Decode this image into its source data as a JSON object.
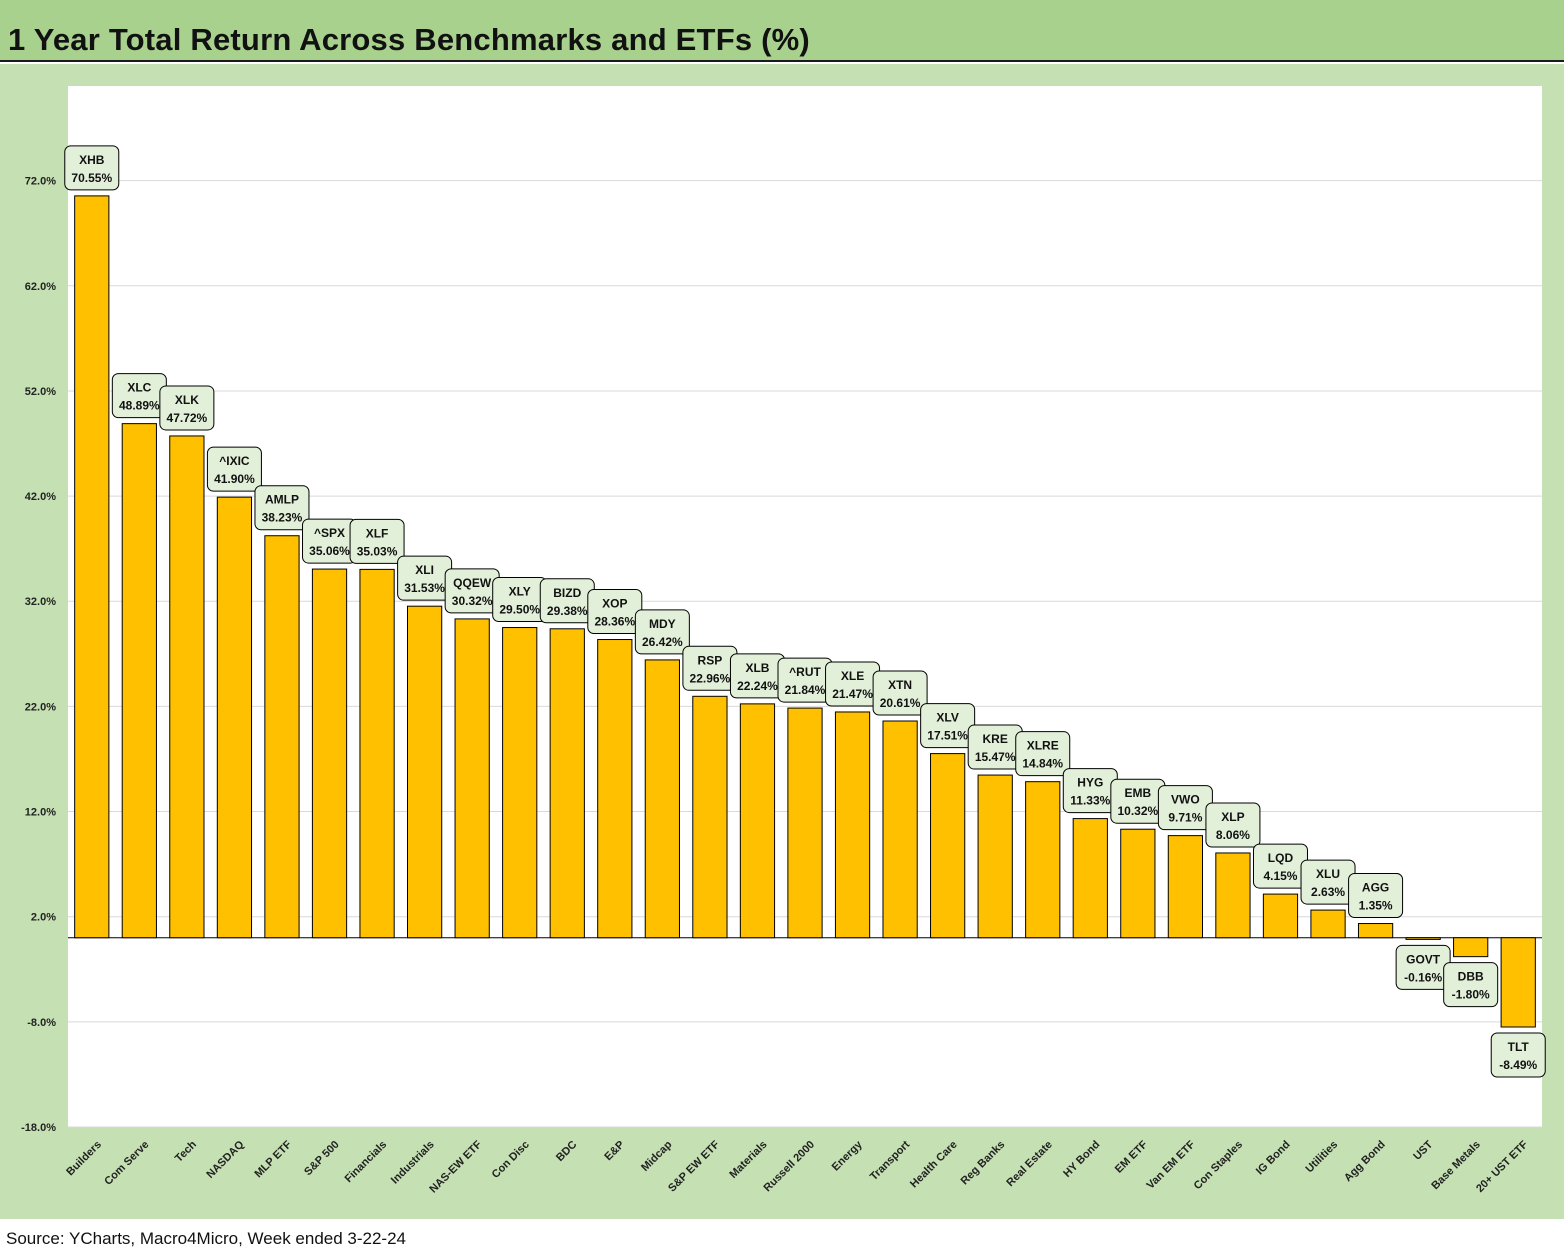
{
  "title": "1 Year Total Return Across Benchmarks and ETFs (%)",
  "source": "Source: YCharts, Macro4Micro, Week ended 3-22-24",
  "colors": {
    "bar": "#ffc000",
    "title_background": "#a9d18e",
    "frame_background": "#c5e0b3",
    "label_background": "#e2efd9"
  },
  "chart_data": {
    "type": "bar",
    "title": "1 Year Total Return Across Benchmarks and ETFs (%)",
    "xlabel": "",
    "ylabel": "",
    "ylim": [
      -18,
      72
    ],
    "yticks": [
      72,
      62,
      52,
      42,
      32,
      22,
      12,
      2,
      -8,
      -18
    ],
    "ytick_labels": [
      "72.0%",
      "62.0%",
      "52.0%",
      "42.0%",
      "32.0%",
      "22.0%",
      "12.0%",
      "2.0%",
      "-8.0%",
      "-18.0%"
    ],
    "grid": true,
    "legend": "none",
    "categories": [
      "Builders",
      "Com Serve",
      "Tech",
      "NASDAQ",
      "MLP ETF",
      "S&P 500",
      "Financials",
      "Industrials",
      "NAS-EW ETF",
      "Con Disc",
      "BDC",
      "E&P",
      "Midcap",
      "S&P EW ETF",
      "Materials",
      "Russell 2000",
      "Energy",
      "Transport",
      "Health Care",
      "Reg Banks",
      "Real Estate",
      "HY Bond",
      "EM ETF",
      "Van EM ETF",
      "Con Staples",
      "IG Bond",
      "Utilities",
      "Agg Bond",
      "UST",
      "Base Metals",
      "20+ UST ETF"
    ],
    "tickers": [
      "XHB",
      "XLC",
      "XLK",
      "^IXIC",
      "AMLP",
      "^SPX",
      "XLF",
      "XLI",
      "QQEW",
      "XLY",
      "BIZD",
      "XOP",
      "MDY",
      "RSP",
      "XLB",
      "^RUT",
      "XLE",
      "XTN",
      "XLV",
      "KRE",
      "XLRE",
      "HYG",
      "EMB",
      "VWO",
      "XLP",
      "LQD",
      "XLU",
      "AGG",
      "GOVT",
      "DBB",
      "TLT"
    ],
    "values": [
      70.55,
      48.89,
      47.72,
      41.9,
      38.23,
      35.06,
      35.03,
      31.53,
      30.32,
      29.5,
      29.38,
      28.36,
      26.42,
      22.96,
      22.24,
      21.84,
      21.47,
      20.61,
      17.51,
      15.47,
      14.84,
      11.33,
      10.32,
      9.71,
      8.06,
      4.15,
      2.63,
      1.35,
      -0.16,
      -1.8,
      -8.49
    ],
    "value_labels": [
      "70.55%",
      "48.89%",
      "47.72%",
      "41.90%",
      "38.23%",
      "35.06%",
      "35.03%",
      "31.53%",
      "30.32%",
      "29.50%",
      "29.38%",
      "28.36%",
      "26.42%",
      "22.96%",
      "22.24%",
      "21.84%",
      "21.47%",
      "20.61%",
      "17.51%",
      "15.47%",
      "14.84%",
      "11.33%",
      "10.32%",
      "9.71%",
      "8.06%",
      "4.15%",
      "2.63%",
      "1.35%",
      "-0.16%",
      "-1.80%",
      "-8.49%"
    ]
  }
}
